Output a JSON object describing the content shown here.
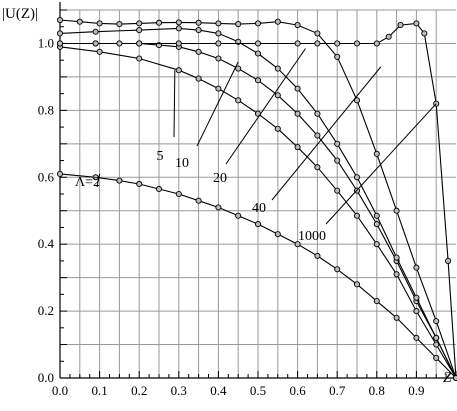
{
  "chart_data": {
    "type": "line",
    "title": "",
    "ylabel": "|U(Z)|",
    "xlabel": "Z",
    "xlim": [
      0,
      1
    ],
    "ylim": [
      0,
      1.1
    ],
    "x_ticks": [
      {
        "value": 0.0,
        "label": "0.0"
      },
      {
        "value": 0.1,
        "label": "0.1"
      },
      {
        "value": 0.2,
        "label": "0.2"
      },
      {
        "value": 0.3,
        "label": "0.3"
      },
      {
        "value": 0.4,
        "label": "0.4"
      },
      {
        "value": 0.5,
        "label": "0.5"
      },
      {
        "value": 0.6,
        "label": "0.6"
      },
      {
        "value": 0.7,
        "label": "0.7"
      },
      {
        "value": 0.8,
        "label": "0.8"
      },
      {
        "value": 0.9,
        "label": "0.9"
      }
    ],
    "y_ticks": [
      {
        "value": 0.0,
        "label": "0.0"
      },
      {
        "value": 0.2,
        "label": "0.2"
      },
      {
        "value": 0.4,
        "label": "0.4"
      },
      {
        "value": 0.6,
        "label": "0.6"
      },
      {
        "value": 0.8,
        "label": "0.8"
      },
      {
        "value": 1.0,
        "label": "1.0"
      }
    ],
    "grid": true,
    "series": [
      {
        "name": "Λ=2",
        "x": [
          0,
          0.09,
          0.15,
          0.2,
          0.25,
          0.3,
          0.35,
          0.4,
          0.45,
          0.5,
          0.55,
          0.6,
          0.65,
          0.7,
          0.75,
          0.8,
          0.85,
          0.9,
          0.95,
          1.0
        ],
        "y": [
          0.61,
          0.6,
          0.59,
          0.58,
          0.565,
          0.55,
          0.53,
          0.51,
          0.485,
          0.46,
          0.43,
          0.4,
          0.365,
          0.325,
          0.28,
          0.23,
          0.18,
          0.12,
          0.06,
          0.0
        ]
      },
      {
        "name": "5",
        "x": [
          0,
          0.1,
          0.2,
          0.3,
          0.35,
          0.4,
          0.45,
          0.5,
          0.55,
          0.6,
          0.65,
          0.7,
          0.75,
          0.8,
          0.85,
          0.9,
          0.95,
          1.0
        ],
        "y": [
          0.99,
          0.975,
          0.955,
          0.92,
          0.895,
          0.865,
          0.83,
          0.79,
          0.745,
          0.69,
          0.63,
          0.56,
          0.485,
          0.4,
          0.31,
          0.2,
          0.1,
          0.0
        ]
      },
      {
        "name": "10",
        "x": [
          0,
          0.09,
          0.2,
          0.25,
          0.3,
          0.35,
          0.4,
          0.45,
          0.5,
          0.55,
          0.6,
          0.65,
          0.7,
          0.75,
          0.8,
          0.85,
          0.9,
          0.95,
          1.0
        ],
        "y": [
          1.0,
          1.0,
          1.0,
          0.995,
          0.99,
          0.975,
          0.955,
          0.925,
          0.89,
          0.845,
          0.79,
          0.725,
          0.65,
          0.56,
          0.46,
          0.35,
          0.23,
          0.12,
          0.0
        ]
      },
      {
        "name": "20",
        "x": [
          0,
          0.09,
          0.2,
          0.3,
          0.35,
          0.4,
          0.45,
          0.5,
          0.55,
          0.6,
          0.65,
          0.7,
          0.75,
          0.8,
          0.85,
          0.9,
          0.95,
          1.0
        ],
        "y": [
          1.03,
          1.035,
          1.04,
          1.045,
          1.04,
          1.03,
          1.005,
          0.97,
          0.925,
          0.865,
          0.79,
          0.7,
          0.6,
          0.485,
          0.36,
          0.24,
          0.12,
          0.0
        ]
      },
      {
        "name": "40",
        "x": [
          0,
          0.05,
          0.1,
          0.15,
          0.2,
          0.25,
          0.3,
          0.35,
          0.4,
          0.45,
          0.5,
          0.55,
          0.6,
          0.65,
          0.7,
          0.75,
          0.8,
          0.85,
          0.9,
          0.95,
          1.0
        ],
        "y": [
          1.07,
          1.065,
          1.06,
          1.058,
          1.06,
          1.062,
          1.063,
          1.062,
          1.06,
          1.058,
          1.06,
          1.065,
          1.055,
          1.03,
          0.96,
          0.83,
          0.67,
          0.5,
          0.33,
          0.17,
          0.0
        ]
      },
      {
        "name": "1000",
        "x": [
          0,
          0.09,
          0.15,
          0.2,
          0.3,
          0.4,
          0.5,
          0.6,
          0.65,
          0.7,
          0.75,
          0.8,
          0.83,
          0.86,
          0.9,
          0.92,
          0.95,
          0.98,
          1.0
        ],
        "y": [
          1.0,
          1.0,
          1.0,
          1.0,
          1.0,
          1.0,
          1.0,
          1.0,
          1.0,
          1.0,
          1.0,
          1.0,
          1.02,
          1.055,
          1.06,
          1.03,
          0.82,
          0.35,
          0.0
        ]
      }
    ],
    "annotations": [
      {
        "text": "Λ=2",
        "target": [
          0.1,
          0.61
        ]
      },
      {
        "text": "5",
        "target": [
          0.29,
          0.92
        ]
      },
      {
        "text": "10",
        "target": [
          0.45,
          0.945
        ]
      },
      {
        "text": "20",
        "target": [
          0.62,
          0.985
        ]
      },
      {
        "text": "40",
        "target": [
          0.81,
          0.93
        ]
      },
      {
        "text": "1000",
        "target": [
          0.95,
          0.82
        ]
      }
    ]
  }
}
